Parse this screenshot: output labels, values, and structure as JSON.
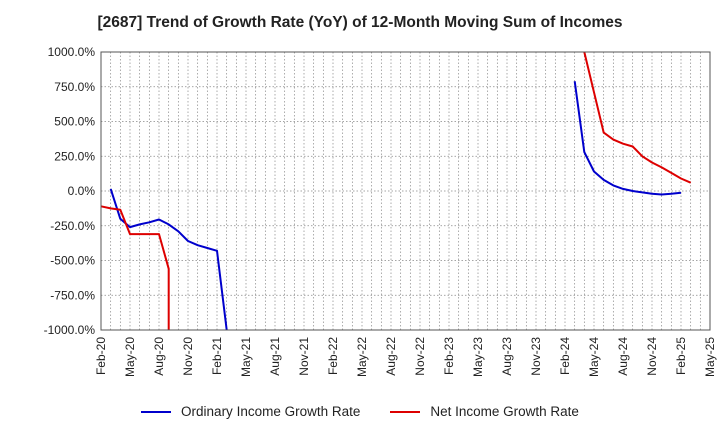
{
  "chart_data": {
    "type": "line",
    "title": "[2687]  Trend of Growth Rate (YoY) of 12-Month Moving Sum of Incomes",
    "xlabel": "",
    "ylabel": "",
    "ylim": [
      -1000,
      1000
    ],
    "y_ticks": [
      "1000.0%",
      "750.0%",
      "500.0%",
      "250.0%",
      "0.0%",
      "-250.0%",
      "-500.0%",
      "-750.0%",
      "-1000.0%"
    ],
    "x_ticks": [
      "Feb-20",
      "May-20",
      "Aug-20",
      "Nov-20",
      "Feb-21",
      "May-21",
      "Aug-21",
      "Nov-21",
      "Feb-22",
      "May-22",
      "Aug-22",
      "Nov-22",
      "Feb-23",
      "May-23",
      "Aug-23",
      "Nov-23",
      "Feb-24",
      "May-24",
      "Aug-24",
      "Nov-24",
      "Feb-25",
      "May-25"
    ],
    "grid": true,
    "legend_position": "bottom",
    "series": [
      {
        "name": "Ordinary Income Growth Rate",
        "color": "#0000cc",
        "points": [
          [
            "2020-03",
            15
          ],
          [
            "2020-04",
            -200
          ],
          [
            "2020-05",
            -260
          ],
          [
            "2020-06",
            -240
          ],
          [
            "2020-07",
            -225
          ],
          [
            "2020-08",
            -205
          ],
          [
            "2020-09",
            -240
          ],
          [
            "2020-10",
            -290
          ],
          [
            "2020-11",
            -360
          ],
          [
            "2020-12",
            -390
          ],
          [
            "2021-01",
            -410
          ],
          [
            "2021-02",
            -430
          ],
          [
            "2021-03",
            -1000
          ]
        ]
      },
      {
        "name": "Net Income Growth Rate",
        "color": "#dd0000",
        "points": [
          [
            "2020-02",
            -110
          ],
          [
            "2020-03",
            -125
          ],
          [
            "2020-04",
            -135
          ],
          [
            "2020-05",
            -310
          ],
          [
            "2020-06",
            -310
          ],
          [
            "2020-07",
            -310
          ],
          [
            "2020-08",
            -310
          ],
          [
            "2020-09",
            -560
          ],
          [
            "2020-09",
            -1000
          ]
        ]
      },
      {
        "name": "Ordinary Income Growth Rate",
        "color": "#0000cc",
        "points": [
          [
            "2024-03",
            790
          ],
          [
            "2024-04",
            280
          ],
          [
            "2024-05",
            140
          ],
          [
            "2024-06",
            80
          ],
          [
            "2024-07",
            40
          ],
          [
            "2024-08",
            15
          ],
          [
            "2024-09",
            0
          ],
          [
            "2024-10",
            -10
          ],
          [
            "2024-11",
            -20
          ],
          [
            "2024-12",
            -25
          ],
          [
            "2025-01",
            -20
          ],
          [
            "2025-02",
            -12
          ]
        ]
      },
      {
        "name": "Net Income Growth Rate",
        "color": "#dd0000",
        "points": [
          [
            "2024-04",
            1000
          ],
          [
            "2024-05",
            710
          ],
          [
            "2024-06",
            420
          ],
          [
            "2024-07",
            370
          ],
          [
            "2024-08",
            340
          ],
          [
            "2024-09",
            320
          ],
          [
            "2024-10",
            250
          ],
          [
            "2024-11",
            205
          ],
          [
            "2024-12",
            170
          ],
          [
            "2025-01",
            130
          ],
          [
            "2025-02",
            90
          ],
          [
            "2025-03",
            60
          ]
        ]
      }
    ],
    "legend": [
      {
        "name": "Ordinary Income Growth Rate",
        "color": "#0000cc"
      },
      {
        "name": "Net Income Growth Rate",
        "color": "#dd0000"
      }
    ]
  }
}
